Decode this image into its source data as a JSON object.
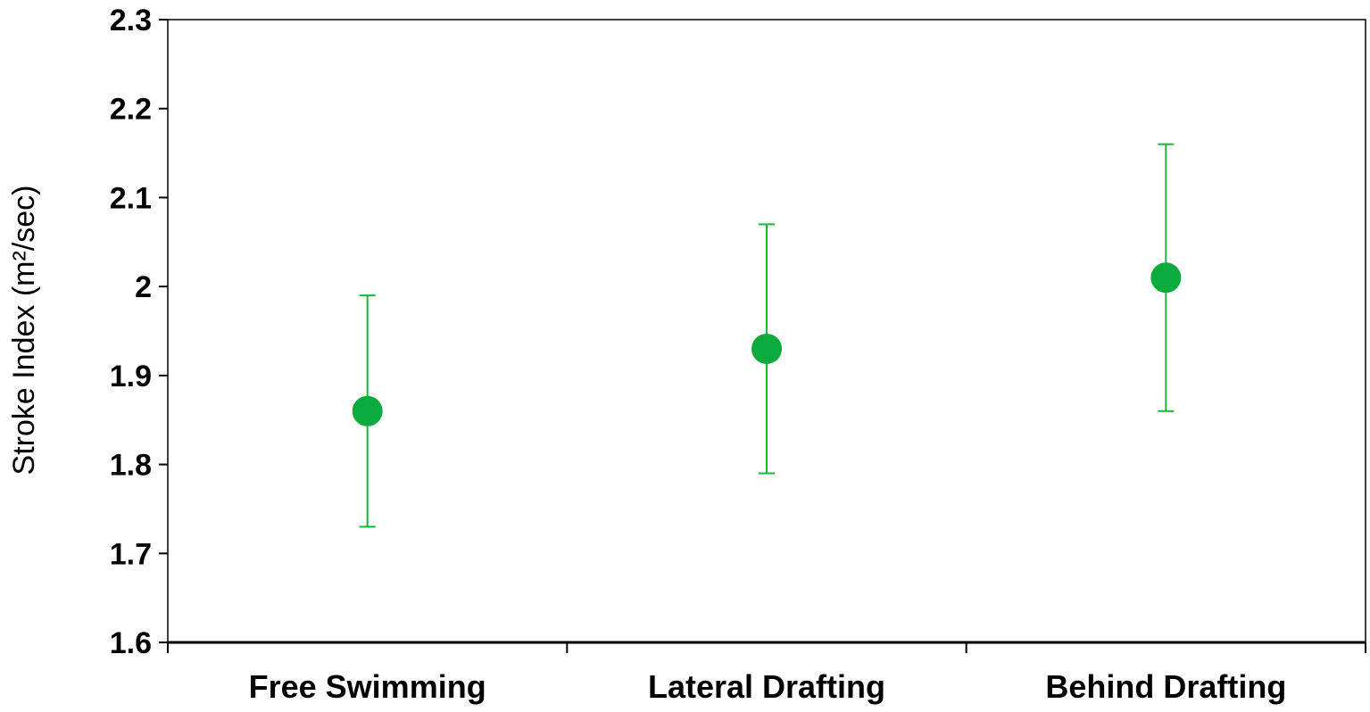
{
  "chart_data": {
    "type": "scatter",
    "title": "",
    "xlabel": "",
    "ylabel": "Stroke Index (m²/sec)",
    "ylim": [
      1.6,
      2.3
    ],
    "yticks": [
      "1.6",
      "1.7",
      "1.8",
      "1.9",
      "2",
      "2.1",
      "2.2",
      "2.3"
    ],
    "grid": false,
    "categories": [
      "Free Swimming",
      "Lateral Drafting",
      "Behind Drafting"
    ],
    "series": [
      {
        "values": [
          1.86,
          1.93,
          2.01
        ],
        "error_low": [
          1.73,
          1.79,
          1.86
        ],
        "error_high": [
          1.99,
          2.07,
          2.16
        ],
        "color": "#0aaa3c"
      }
    ],
    "colors": {
      "marker": "#0aaa3c",
      "errorbar": "#19b43c",
      "axis": "#000000"
    }
  }
}
